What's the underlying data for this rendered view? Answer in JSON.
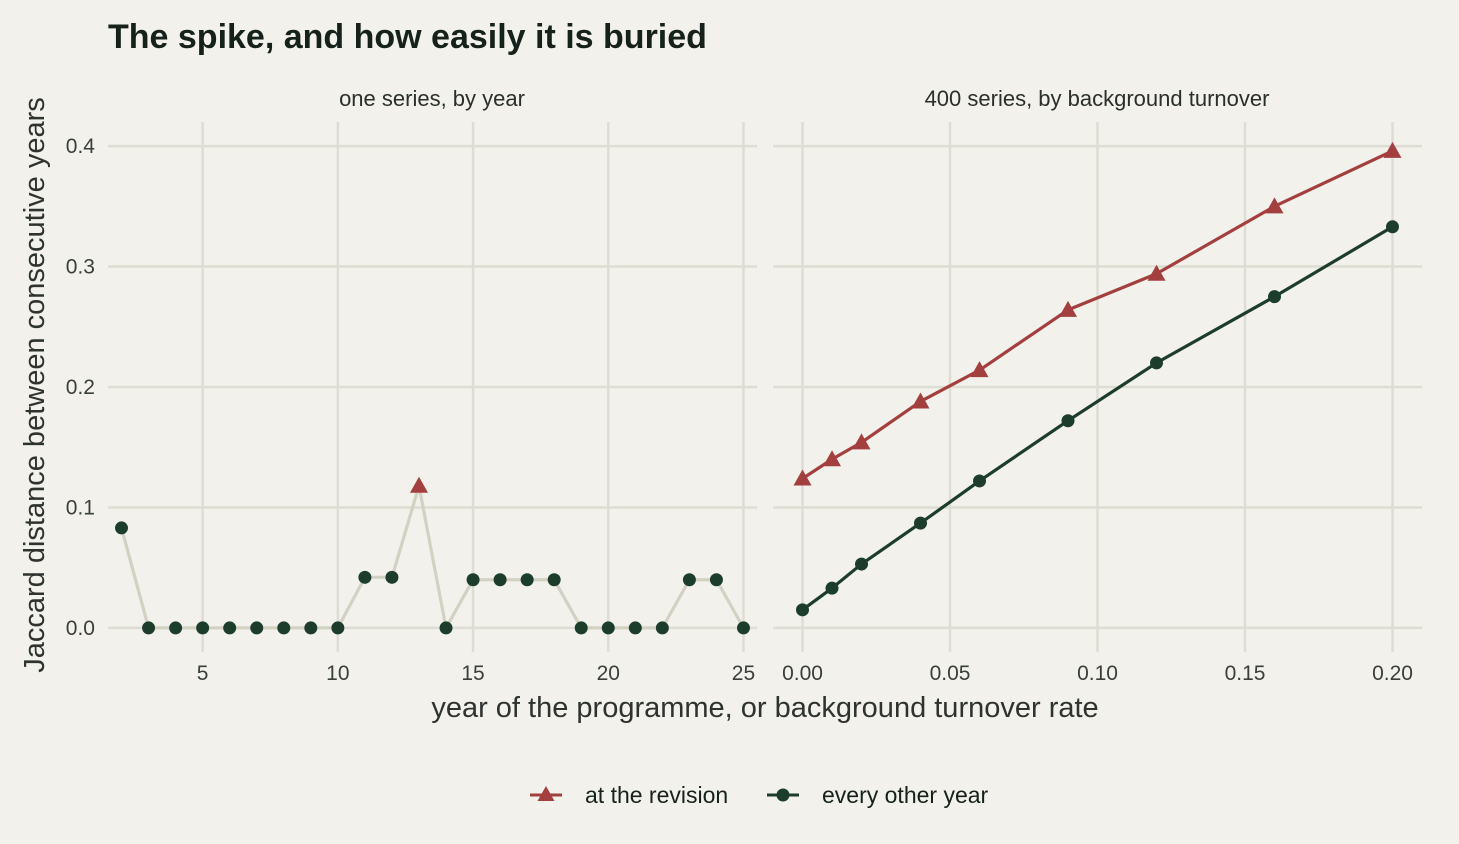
{
  "colors": {
    "background": "#f2f1eb",
    "grid": "#deddd3",
    "revision": "#a33f3f",
    "other": "#1d3d2c",
    "single_series_line": "#d3d2c2"
  },
  "chart_data": {
    "type": "line",
    "title": "The spike, and how easily it is buried",
    "xlabel": "year of the programme, or background turnover rate",
    "ylabel": "Jaccard distance between consecutive years",
    "legend": {
      "placement": "bottom",
      "entries": [
        {
          "label": "at the revision",
          "marker": "triangle",
          "color": "#a33f3f"
        },
        {
          "label": "every other year",
          "marker": "circle",
          "color": "#1d3d2c"
        }
      ]
    },
    "grid": true,
    "ylim": [
      -0.02,
      0.42
    ],
    "yticks": [
      0.0,
      0.1,
      0.2,
      0.3,
      0.4
    ],
    "ytick_labels": [
      "0.0",
      "0.1",
      "0.2",
      "0.3",
      "0.4"
    ],
    "panels": [
      {
        "strip": "one series, by year",
        "xlim": [
          1.5,
          25.5
        ],
        "xticks": [
          5,
          10,
          15,
          20,
          25
        ],
        "xtick_labels": [
          "5",
          "10",
          "15",
          "20",
          "25"
        ],
        "series": [
          {
            "x": [
              2,
              3,
              4,
              5,
              6,
              7,
              8,
              9,
              10,
              11,
              12,
              13,
              14,
              15,
              16,
              17,
              18,
              19,
              20,
              21,
              22,
              23,
              24,
              25
            ],
            "y": [
              0.083,
              0.0,
              0.0,
              0.0,
              0.0,
              0.0,
              0.0,
              0.0,
              0.0,
              0.042,
              0.042,
              0.118,
              0.0,
              0.04,
              0.04,
              0.04,
              0.04,
              0.0,
              0.0,
              0.0,
              0.0,
              0.04,
              0.04,
              0.0
            ],
            "revision_index": 11
          }
        ]
      },
      {
        "strip": "400 series, by background turnover",
        "xlim": [
          -0.01,
          0.21
        ],
        "xticks": [
          0.0,
          0.05,
          0.1,
          0.15,
          0.2
        ],
        "xtick_labels": [
          "0.00",
          "0.05",
          "0.10",
          "0.15",
          "0.20"
        ],
        "series": [
          {
            "name": "at the revision",
            "x": [
              0.0,
              0.01,
              0.02,
              0.04,
              0.06,
              0.09,
              0.12,
              0.16,
              0.2
            ],
            "y": [
              0.124,
              0.14,
              0.154,
              0.188,
              0.214,
              0.264,
              0.294,
              0.35,
              0.396
            ]
          },
          {
            "name": "every other year",
            "x": [
              0.0,
              0.01,
              0.02,
              0.04,
              0.06,
              0.09,
              0.12,
              0.16,
              0.2
            ],
            "y": [
              0.015,
              0.033,
              0.053,
              0.087,
              0.122,
              0.172,
              0.22,
              0.275,
              0.333
            ]
          }
        ]
      }
    ]
  }
}
